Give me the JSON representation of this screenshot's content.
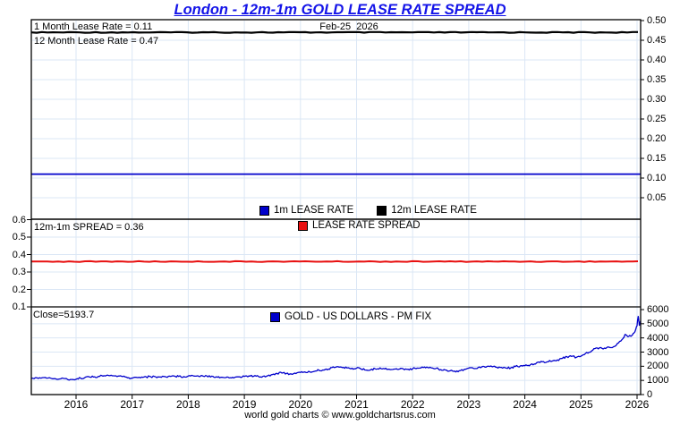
{
  "title": "London - 12m-1m GOLD LEASE RATE SPREAD",
  "footer": "world gold charts © www.goldchartsrus.com",
  "colors": {
    "title": "#1414e8",
    "blue_line": "#0000cc",
    "black_line": "#000000",
    "red_line": "#e81010",
    "grid": "#dbe7f5",
    "axis": "#000000"
  },
  "lease_panel": {
    "label_1m": "1 Month Lease Rate = 0.11",
    "label_12m": "12 Month Lease Rate = 0.47",
    "date_label": "Feb-25  2026"
  },
  "spread_panel": {
    "label": "12m-1m SPREAD = 0.36"
  },
  "gold_panel": {
    "close_label": "Close=5193.7"
  },
  "x_axis": {
    "tick_years": [
      2016,
      2017,
      2018,
      2019,
      2020,
      2021,
      2022,
      2023,
      2024,
      2025,
      2026
    ],
    "range": [
      2015.2,
      2026.06
    ]
  },
  "chart_data": [
    {
      "type": "line",
      "title": "1m and 12m gold lease rates",
      "legend_position": "bottom-center",
      "grid": true,
      "y_axis": {
        "side": "right",
        "ticks": [
          0.5,
          0.45,
          0.4,
          0.35,
          0.3,
          0.25,
          0.2,
          0.15,
          0.1,
          0.05
        ],
        "range": [
          0.0,
          0.5
        ]
      },
      "series": [
        {
          "name": "1m LEASE RATE",
          "color": "#0000cc",
          "constant_value": 0.11
        },
        {
          "name": "12m LEASE RATE",
          "color": "#000000",
          "constant_value": 0.47
        }
      ]
    },
    {
      "type": "line",
      "title": "12m-1m lease rate spread",
      "legend_position": "top-center",
      "grid": true,
      "y_axis": {
        "side": "left",
        "ticks": [
          0.6,
          0.5,
          0.4,
          0.3,
          0.2,
          0.1
        ],
        "range": [
          0.1,
          0.6
        ]
      },
      "series": [
        {
          "name": "LEASE RATE SPREAD",
          "color": "#e81010",
          "constant_value": 0.36
        }
      ]
    },
    {
      "type": "line",
      "title": "Gold price PM fix, USD",
      "legend_position": "top-center",
      "grid": true,
      "close_value": 5193.7,
      "y_axis": {
        "side": "right",
        "ticks": [
          6000,
          5000,
          4000,
          3000,
          2000,
          1000,
          0
        ],
        "range": [
          0,
          6000
        ]
      },
      "series": [
        {
          "name": "GOLD - US DOLLARS - PM FIX",
          "color": "#0000cc",
          "points": [
            [
              2015.2,
              1150
            ],
            [
              2015.3,
              1190
            ],
            [
              2015.4,
              1195
            ],
            [
              2015.5,
              1170
            ],
            [
              2015.6,
              1120
            ],
            [
              2015.7,
              1100
            ],
            [
              2015.8,
              1130
            ],
            [
              2015.9,
              1070
            ],
            [
              2016.0,
              1080
            ],
            [
              2016.08,
              1160
            ],
            [
              2016.17,
              1235
            ],
            [
              2016.25,
              1230
            ],
            [
              2016.33,
              1260
            ],
            [
              2016.42,
              1285
            ],
            [
              2016.5,
              1330
            ],
            [
              2016.58,
              1345
            ],
            [
              2016.67,
              1325
            ],
            [
              2016.75,
              1310
            ],
            [
              2016.83,
              1270
            ],
            [
              2016.92,
              1180
            ],
            [
              2017.0,
              1155
            ],
            [
              2017.08,
              1215
            ],
            [
              2017.17,
              1240
            ],
            [
              2017.25,
              1250
            ],
            [
              2017.33,
              1262
            ],
            [
              2017.42,
              1252
            ],
            [
              2017.5,
              1242
            ],
            [
              2017.58,
              1268
            ],
            [
              2017.67,
              1298
            ],
            [
              2017.75,
              1308
            ],
            [
              2017.83,
              1282
            ],
            [
              2017.92,
              1268
            ],
            [
              2018.0,
              1312
            ],
            [
              2018.08,
              1338
            ],
            [
              2018.17,
              1324
            ],
            [
              2018.25,
              1332
            ],
            [
              2018.33,
              1318
            ],
            [
              2018.42,
              1298
            ],
            [
              2018.5,
              1255
            ],
            [
              2018.58,
              1218
            ],
            [
              2018.67,
              1198
            ],
            [
              2018.75,
              1196
            ],
            [
              2018.83,
              1222
            ],
            [
              2018.92,
              1252
            ],
            [
              2019.0,
              1288
            ],
            [
              2019.08,
              1312
            ],
            [
              2019.17,
              1298
            ],
            [
              2019.25,
              1288
            ],
            [
              2019.33,
              1282
            ],
            [
              2019.42,
              1332
            ],
            [
              2019.5,
              1412
            ],
            [
              2019.58,
              1500
            ],
            [
              2019.67,
              1518
            ],
            [
              2019.75,
              1492
            ],
            [
              2019.83,
              1468
            ],
            [
              2019.92,
              1482
            ],
            [
              2020.0,
              1562
            ],
            [
              2020.08,
              1598
            ],
            [
              2020.17,
              1592
            ],
            [
              2020.25,
              1642
            ],
            [
              2020.33,
              1712
            ],
            [
              2020.42,
              1732
            ],
            [
              2020.5,
              1802
            ],
            [
              2020.58,
              1958
            ],
            [
              2020.67,
              1968
            ],
            [
              2020.75,
              1902
            ],
            [
              2020.83,
              1878
            ],
            [
              2020.92,
              1862
            ],
            [
              2021.0,
              1868
            ],
            [
              2021.08,
              1808
            ],
            [
              2021.17,
              1732
            ],
            [
              2021.25,
              1742
            ],
            [
              2021.33,
              1818
            ],
            [
              2021.42,
              1888
            ],
            [
              2021.5,
              1812
            ],
            [
              2021.58,
              1792
            ],
            [
              2021.67,
              1802
            ],
            [
              2021.75,
              1782
            ],
            [
              2021.83,
              1828
            ],
            [
              2021.92,
              1792
            ],
            [
              2022.0,
              1818
            ],
            [
              2022.08,
              1872
            ],
            [
              2022.17,
              1948
            ],
            [
              2022.25,
              1938
            ],
            [
              2022.33,
              1888
            ],
            [
              2022.42,
              1848
            ],
            [
              2022.5,
              1762
            ],
            [
              2022.58,
              1738
            ],
            [
              2022.67,
              1682
            ],
            [
              2022.75,
              1652
            ],
            [
              2022.83,
              1682
            ],
            [
              2022.92,
              1782
            ],
            [
              2023.0,
              1868
            ],
            [
              2023.08,
              1858
            ],
            [
              2023.17,
              1918
            ],
            [
              2023.25,
              1988
            ],
            [
              2023.33,
              1998
            ],
            [
              2023.42,
              1958
            ],
            [
              2023.5,
              1928
            ],
            [
              2023.58,
              1918
            ],
            [
              2023.67,
              1872
            ],
            [
              2023.75,
              1888
            ],
            [
              2023.83,
              1978
            ],
            [
              2023.92,
              2028
            ],
            [
              2024.0,
              2038
            ],
            [
              2024.08,
              2032
            ],
            [
              2024.17,
              2158
            ],
            [
              2024.25,
              2298
            ],
            [
              2024.33,
              2328
            ],
            [
              2024.42,
              2318
            ],
            [
              2024.5,
              2388
            ],
            [
              2024.58,
              2448
            ],
            [
              2024.67,
              2558
            ],
            [
              2024.75,
              2678
            ],
            [
              2024.83,
              2698
            ],
            [
              2024.92,
              2632
            ],
            [
              2025.0,
              2712
            ],
            [
              2025.08,
              2898
            ],
            [
              2025.17,
              3002
            ],
            [
              2025.25,
              3248
            ],
            [
              2025.33,
              3298
            ],
            [
              2025.42,
              3282
            ],
            [
              2025.5,
              3348
            ],
            [
              2025.58,
              3382
            ],
            [
              2025.67,
              3648
            ],
            [
              2025.75,
              3952
            ],
            [
              2025.79,
              4248
            ],
            [
              2025.83,
              4098
            ],
            [
              2025.88,
              4148
            ],
            [
              2025.92,
              4228
            ],
            [
              2025.96,
              4418
            ],
            [
              2026.0,
              4852
            ],
            [
              2026.02,
              5518
            ],
            [
              2026.04,
              4902
            ],
            [
              2026.05,
              5098
            ],
            [
              2026.06,
              5193.7
            ]
          ]
        }
      ]
    }
  ]
}
